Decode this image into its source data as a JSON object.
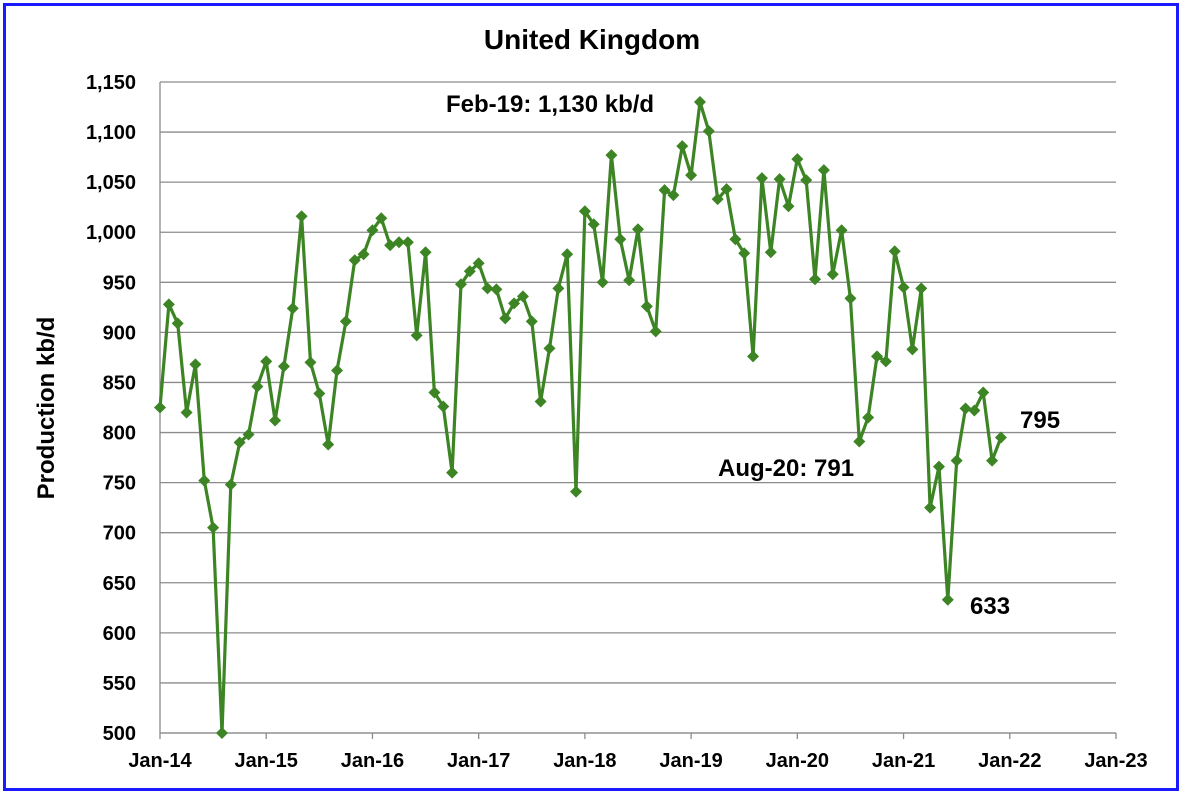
{
  "chart_data": {
    "type": "line",
    "title": "United Kingdom",
    "xlabel": "",
    "ylabel": "Production kb/d",
    "ylim": [
      500,
      1150
    ],
    "y_ticks": [
      500,
      550,
      600,
      650,
      700,
      750,
      800,
      850,
      900,
      950,
      1000,
      1050,
      1100,
      1150
    ],
    "y_tick_labels": [
      "500",
      "550",
      "600",
      "650",
      "700",
      "750",
      "800",
      "850",
      "900",
      "950",
      "1,000",
      "1,050",
      "1,100",
      "1,150"
    ],
    "x_tick_labels": [
      "Jan-14",
      "Jan-15",
      "Jan-16",
      "Jan-17",
      "Jan-18",
      "Jan-19",
      "Jan-20",
      "Jan-21",
      "Jan-22",
      "Jan-23"
    ],
    "x_start": "Jan-14",
    "x_end": "Jan-23",
    "grid": true,
    "line_color": "#3c8424",
    "marker": "diamond",
    "series": [
      {
        "start": "Jan-14",
        "values": [
          825,
          928,
          909,
          820,
          868,
          752,
          705,
          500,
          748,
          790,
          798,
          846,
          871,
          812,
          866,
          924,
          1016,
          870,
          839,
          788,
          862,
          911,
          972,
          978,
          1002,
          1014,
          987,
          990,
          990,
          897,
          980,
          840,
          826,
          760,
          948,
          961,
          969,
          944,
          943,
          914,
          929,
          936,
          911,
          831,
          884,
          944,
          978,
          741,
          1021,
          1008,
          950,
          1077,
          993,
          952,
          1003,
          926,
          901,
          1042,
          1037,
          1086,
          1057,
          1130,
          1101,
          1033,
          1043,
          993,
          979,
          876,
          1054,
          980,
          1053,
          1026,
          1073,
          1052,
          953,
          1062,
          958,
          1002,
          934,
          791,
          815,
          876,
          871,
          981,
          945,
          883,
          944,
          725,
          766,
          633,
          772,
          824,
          822,
          840,
          772,
          795
        ]
      }
    ],
    "annotations": [
      {
        "text": "Feb-19: 1,130 kb/d"
      },
      {
        "text": "Aug-20: 791"
      },
      {
        "text": "633"
      },
      {
        "text": "795"
      }
    ]
  }
}
